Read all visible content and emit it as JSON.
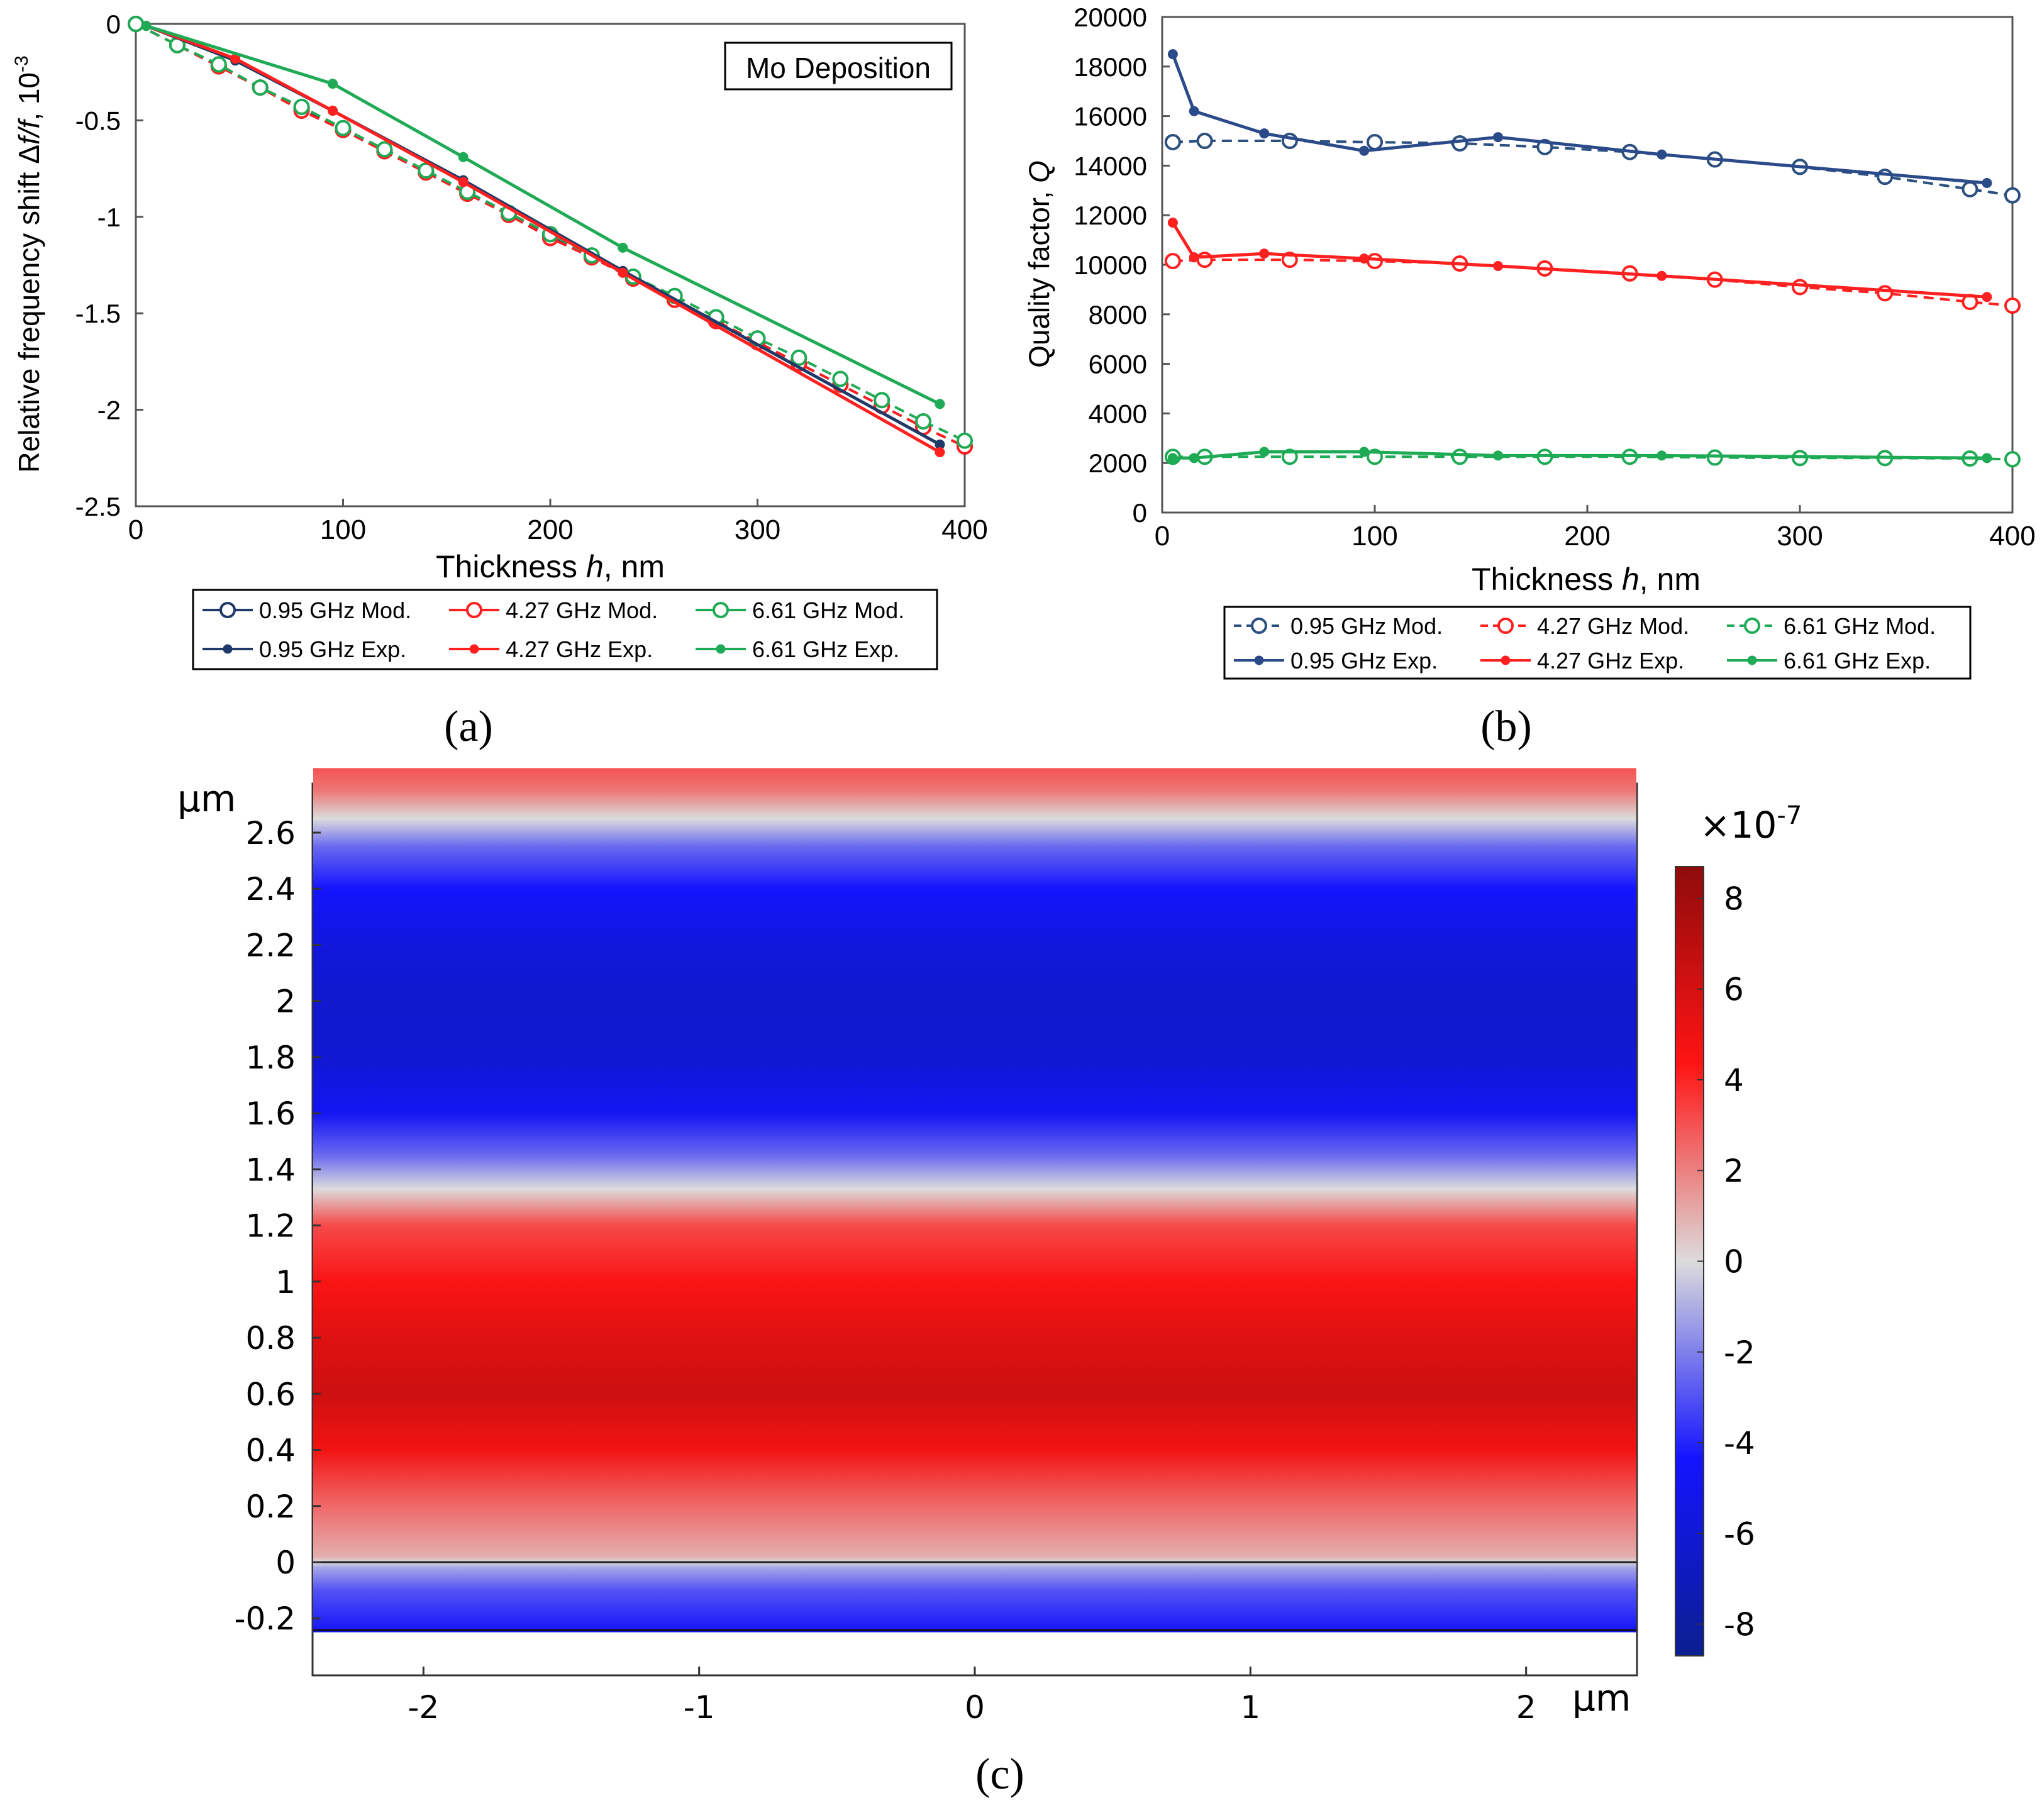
{
  "figure": {
    "panel_labels": [
      "(a)",
      "(b)",
      "(c)"
    ]
  },
  "chart_data": [
    {
      "panel": "(a)",
      "type": "line",
      "title": "",
      "annotation": "Mo Deposition",
      "xlabel_main": "Thickness ",
      "xlabel_var": "h",
      "xlabel_unit": ", nm",
      "ylabel_main": "Relative frequency shift Δ",
      "ylabel_var": "f/f",
      "ylabel_unit": ", 10",
      "ylabel_exp": "-3",
      "xlim": [
        0,
        400
      ],
      "ylim": [
        -2.5,
        0
      ],
      "xticks": [
        0,
        100,
        200,
        300,
        400
      ],
      "yticks": [
        0,
        -0.5,
        -1,
        -1.5,
        -2,
        -2.5
      ],
      "ytick_labels": [
        "0",
        "-0.5",
        "-1",
        "-1.5",
        "-2",
        "-2.5"
      ],
      "legend_position": "bottom",
      "series": [
        {
          "name": "0.95 GHz Mod.",
          "kind": "model",
          "color": "#1f3a68",
          "x": [
            0,
            20,
            40,
            60,
            80,
            100,
            120,
            140,
            160,
            180,
            200,
            220,
            240,
            260,
            280,
            300,
            320,
            340,
            360,
            380,
            400
          ],
          "y": [
            0,
            -0.11,
            -0.22,
            -0.33,
            -0.44,
            -0.55,
            -0.66,
            -0.77,
            -0.88,
            -0.99,
            -1.1,
            -1.21,
            -1.32,
            -1.43,
            -1.54,
            -1.65,
            -1.76,
            -1.87,
            -1.98,
            -2.09,
            -2.19
          ]
        },
        {
          "name": "4.27 GHz Mod.",
          "kind": "model",
          "color": "#ff2020",
          "x": [
            0,
            20,
            40,
            60,
            80,
            100,
            120,
            140,
            160,
            180,
            200,
            220,
            240,
            260,
            280,
            300,
            320,
            340,
            360,
            380,
            400
          ],
          "y": [
            0,
            -0.11,
            -0.22,
            -0.33,
            -0.45,
            -0.55,
            -0.66,
            -0.77,
            -0.88,
            -0.99,
            -1.11,
            -1.21,
            -1.32,
            -1.43,
            -1.54,
            -1.65,
            -1.76,
            -1.87,
            -1.98,
            -2.09,
            -2.19
          ]
        },
        {
          "name": "6.61 GHz Mod.",
          "kind": "model",
          "color": "#1faa55",
          "x": [
            0,
            20,
            40,
            60,
            80,
            100,
            120,
            140,
            160,
            180,
            200,
            220,
            240,
            260,
            280,
            300,
            320,
            340,
            360,
            380,
            400
          ],
          "y": [
            0,
            -0.11,
            -0.21,
            -0.33,
            -0.43,
            -0.54,
            -0.65,
            -0.76,
            -0.87,
            -0.98,
            -1.09,
            -1.2,
            -1.31,
            -1.41,
            -1.52,
            -1.63,
            -1.73,
            -1.84,
            -1.95,
            -2.06,
            -2.16
          ]
        },
        {
          "name": "0.95 GHz Exp.",
          "kind": "exp",
          "color": "#1f3a68",
          "x": [
            5,
            48,
            95,
            158,
            235,
            388
          ],
          "y": [
            -0.01,
            -0.19,
            -0.45,
            -0.81,
            -1.28,
            -2.18
          ]
        },
        {
          "name": "4.27 GHz Exp.",
          "kind": "exp",
          "color": "#ff2020",
          "x": [
            5,
            48,
            95,
            158,
            235,
            388
          ],
          "y": [
            -0.01,
            -0.18,
            -0.45,
            -0.82,
            -1.29,
            -2.22
          ]
        },
        {
          "name": "6.61 GHz Exp.",
          "kind": "exp",
          "color": "#1faa55",
          "x": [
            5,
            95,
            158,
            235,
            388
          ],
          "y": [
            -0.01,
            -0.31,
            -0.69,
            -1.16,
            -1.97
          ]
        }
      ]
    },
    {
      "panel": "(b)",
      "type": "line",
      "title": "",
      "xlabel_main": "Thickness ",
      "xlabel_var": "h",
      "xlabel_unit": ", nm",
      "ylabel_main": "Quality factor, ",
      "ylabel_var": "Q",
      "xlim": [
        0,
        400
      ],
      "ylim": [
        0,
        20000
      ],
      "xticks": [
        0,
        100,
        200,
        300,
        400
      ],
      "yticks": [
        0,
        2000,
        4000,
        6000,
        8000,
        10000,
        12000,
        14000,
        16000,
        18000,
        20000
      ],
      "ytick_labels": [
        "0",
        "2000",
        "4000",
        "6000",
        "8000",
        "10000",
        "12000",
        "14000",
        "16000",
        "18000",
        "20000"
      ],
      "legend_position": "bottom",
      "series": [
        {
          "name": "0.95 GHz Mod.",
          "kind": "model",
          "color": "#2b4f7e",
          "x": [
            5,
            20,
            60,
            100,
            140,
            180,
            220,
            260,
            300,
            340,
            380,
            400
          ],
          "y": [
            14950,
            15000,
            15000,
            14950,
            14900,
            14750,
            14550,
            14250,
            13950,
            13550,
            13050,
            12800
          ]
        },
        {
          "name": "4.27 GHz Mod.",
          "kind": "model",
          "color": "#ff2020",
          "x": [
            5,
            20,
            60,
            100,
            140,
            180,
            220,
            260,
            300,
            340,
            380,
            400
          ],
          "y": [
            10150,
            10200,
            10200,
            10150,
            10050,
            9850,
            9650,
            9400,
            9100,
            8850,
            8500,
            8350
          ]
        },
        {
          "name": "6.61 GHz Mod.",
          "kind": "model",
          "color": "#1faa55",
          "x": [
            5,
            20,
            60,
            100,
            140,
            180,
            220,
            260,
            300,
            340,
            380,
            400
          ],
          "y": [
            2250,
            2250,
            2250,
            2250,
            2250,
            2250,
            2250,
            2220,
            2200,
            2200,
            2180,
            2150
          ]
        },
        {
          "name": "0.95 GHz Exp.",
          "kind": "exp",
          "color": "#2b4a8a",
          "x": [
            5,
            15,
            48,
            95,
            158,
            235,
            388
          ],
          "y": [
            18500,
            16200,
            15300,
            14600,
            15150,
            14450,
            13300
          ]
        },
        {
          "name": "4.27 GHz Exp.",
          "kind": "exp",
          "color": "#ff2020",
          "x": [
            5,
            15,
            48,
            95,
            158,
            235,
            388
          ],
          "y": [
            11700,
            10300,
            10450,
            10250,
            9950,
            9550,
            8700
          ]
        },
        {
          "name": "6.61 GHz Exp.",
          "kind": "exp",
          "color": "#1faa55",
          "x": [
            5,
            15,
            48,
            95,
            158,
            235,
            388
          ],
          "y": [
            2200,
            2200,
            2450,
            2450,
            2300,
            2300,
            2200
          ]
        }
      ]
    },
    {
      "panel": "(c)",
      "type": "heatmap",
      "title": "",
      "xunit": "μm",
      "yunit": "μm",
      "xlim": [
        -2.4,
        2.4
      ],
      "ylim": [
        -0.35,
        2.83
      ],
      "data_ylim": [
        -0.25,
        2.83
      ],
      "boundary_y": 0,
      "xticks": [
        -2,
        -1,
        0,
        1,
        2
      ],
      "xtick_labels": [
        "-2",
        "-1",
        "0",
        "1",
        "2"
      ],
      "yticks": [
        -0.2,
        0,
        0.2,
        0.4,
        0.6,
        0.8,
        1,
        1.2,
        1.4,
        1.6,
        1.8,
        2,
        2.2,
        2.4,
        2.6
      ],
      "ytick_labels": [
        "-0.2",
        "0",
        "0.2",
        "0.4",
        "0.6",
        "0.8",
        "1",
        "1.2",
        "1.4",
        "1.6",
        "1.8",
        "2",
        "2.2",
        "2.4",
        "2.6"
      ],
      "colorbar_multiplier": "×10",
      "colorbar_exponent": "-7",
      "colorbar_range": [
        -8.7,
        8.7
      ],
      "colorbar_ticks": [
        8,
        6,
        4,
        2,
        0,
        -2,
        -4,
        -6,
        -8
      ],
      "colorbar_tick_labels": [
        "8",
        "6",
        "4",
        "2",
        "0",
        "-2",
        "-4",
        "-6",
        "-8"
      ],
      "colorbar_colors": [
        "#0b1f8f",
        "#1414ff",
        "#dcdcdc",
        "#ff1414",
        "#8f0b0b"
      ],
      "profile": {
        "y": [
          -0.25,
          -0.1,
          -0.02,
          0.0,
          0.02,
          0.2,
          0.4,
          0.6,
          0.8,
          1.0,
          1.2,
          1.33,
          1.45,
          1.6,
          1.8,
          2.0,
          2.2,
          2.4,
          2.55,
          2.65,
          2.75,
          2.83
        ],
        "value": [
          -4.5,
          -3.0,
          -1.2,
          0.0,
          1.0,
          2.5,
          4.8,
          6.3,
          5.6,
          4.5,
          3.2,
          0.0,
          -2.5,
          -4.8,
          -6.1,
          -6.3,
          -5.7,
          -4.4,
          -2.5,
          0.0,
          2.2,
          3.0
        ]
      },
      "xlabel": "",
      "ylabel": ""
    }
  ]
}
